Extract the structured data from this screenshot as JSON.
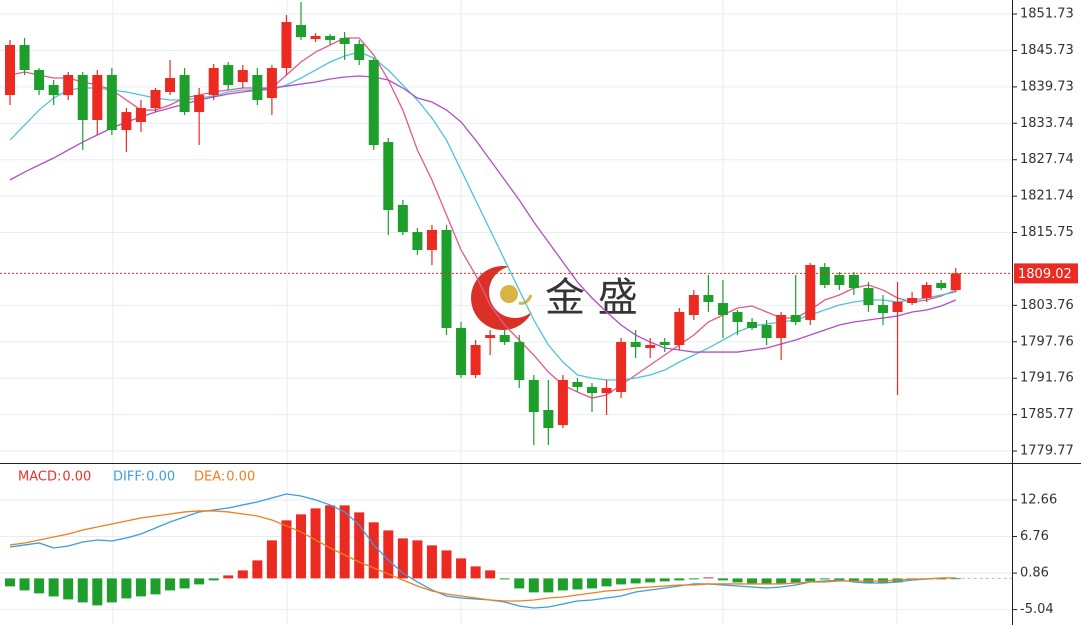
{
  "chart_data": [
    {
      "type": "candlestick",
      "open": [
        1838.39,
        1846.63,
        1842.51,
        1840.04,
        1838.39,
        1841.69,
        1834.28,
        1841.69,
        1832.63,
        1833.95,
        1836.25,
        1838.89,
        1841.69,
        1835.59,
        1838.39,
        1843.33,
        1840.53,
        1841.69,
        1837.9,
        1842.84,
        1849.92,
        1847.61,
        1848.11,
        1847.78,
        1846.79,
        1844.16,
        1830.65,
        1820.28,
        1815.83,
        1812.87,
        1816.17,
        1800.03,
        1792.29,
        1798.38,
        1798.87,
        1797.72,
        1791.47,
        1786.53,
        1784.05,
        1791.14,
        1790.32,
        1789.32,
        1789.49,
        1797.72,
        1796.73,
        1797.72,
        1797.23,
        1802.17,
        1805.46,
        1804.14,
        1802.66,
        1801.02,
        1800.52,
        1798.38,
        1802.17,
        1801.35,
        1810.07,
        1808.76,
        1808.76,
        1806.61,
        1803.81,
        1802.66,
        1804.14,
        1804.97,
        1807.44,
        1806.28
      ],
      "high": [
        1847.45,
        1847.78,
        1842.84,
        1840.86,
        1842.18,
        1842.18,
        1842.51,
        1842.84,
        1836.25,
        1837.57,
        1839.55,
        1844.16,
        1842.84,
        1839.55,
        1843.5,
        1843.83,
        1843.33,
        1842.84,
        1843.33,
        1851.57,
        1853.7,
        1848.6,
        1848.44,
        1848.77,
        1847.45,
        1844.49,
        1831.31,
        1821.1,
        1816.49,
        1816.99,
        1816.99,
        1801.02,
        1798.05,
        1799.7,
        1799.7,
        1798.87,
        1792.29,
        1791.47,
        1792.29,
        1791.8,
        1790.97,
        1791.47,
        1798.38,
        1799.7,
        1798.38,
        1798.38,
        1803.32,
        1806.28,
        1808.76,
        1807.93,
        1802.99,
        1801.68,
        1801.35,
        1802.66,
        1808.76,
        1810.73,
        1810.73,
        1809.25,
        1809.25,
        1807.6,
        1805.46,
        1807.6,
        1805.95,
        1807.6,
        1807.93,
        1809.91
      ],
      "low": [
        1836.75,
        1841.69,
        1838.39,
        1836.75,
        1837.57,
        1829.34,
        1831.81,
        1831.81,
        1829.01,
        1832.3,
        1835.59,
        1838.39,
        1835.1,
        1830.16,
        1837.57,
        1839.22,
        1839.55,
        1836.75,
        1835.1,
        1841.69,
        1847.45,
        1847.12,
        1846.63,
        1844.16,
        1843.33,
        1829.34,
        1815.34,
        1815.34,
        1812.05,
        1810.4,
        1798.87,
        1791.8,
        1791.8,
        1795.58,
        1797.23,
        1790.15,
        1780.76,
        1780.76,
        1783.56,
        1789.49,
        1786.19,
        1785.7,
        1788.5,
        1795.09,
        1795.09,
        1796.07,
        1796.4,
        1801.35,
        1802.66,
        1798.38,
        1798.87,
        1799.7,
        1797.23,
        1794.76,
        1800.52,
        1800.52,
        1806.61,
        1806.28,
        1805.46,
        1802.66,
        1800.52,
        1788.99,
        1803.81,
        1804.31,
        1806.28,
        1805.95
      ],
      "close": [
        1846.63,
        1842.51,
        1839.22,
        1838.39,
        1841.69,
        1834.28,
        1841.69,
        1832.63,
        1835.59,
        1836.25,
        1839.22,
        1841.19,
        1835.59,
        1838.39,
        1842.84,
        1840.04,
        1842.51,
        1837.57,
        1842.84,
        1850.41,
        1847.94,
        1848.11,
        1847.45,
        1846.79,
        1844.16,
        1830.16,
        1819.46,
        1815.83,
        1812.87,
        1816.17,
        1800.03,
        1792.29,
        1797.23,
        1798.87,
        1797.72,
        1791.47,
        1786.19,
        1783.56,
        1791.47,
        1790.32,
        1789.32,
        1790.15,
        1797.72,
        1796.9,
        1797.23,
        1797.23,
        1802.66,
        1805.46,
        1804.31,
        1802.17,
        1801.02,
        1800.03,
        1798.38,
        1802.17,
        1801.02,
        1810.4,
        1807.11,
        1807.11,
        1806.61,
        1803.81,
        1802.5,
        1804.31,
        1804.97,
        1807.11,
        1806.61,
        1809.02
      ],
      "up_color": "#eb2a22",
      "down_color": "#1e9e2a",
      "lines": [
        {
          "color": "#e4598b",
          "values": [
            1841.69,
            1842.18,
            1841.69,
            1841.19,
            1841.19,
            1840.53,
            1840.04,
            1839.22,
            1837.57,
            1835.92,
            1835.92,
            1836.75,
            1837.9,
            1838.39,
            1838.89,
            1839.22,
            1839.55,
            1839.55,
            1839.55,
            1841.69,
            1843.83,
            1845.47,
            1846.63,
            1847.78,
            1847.78,
            1844.98,
            1840.86,
            1835.92,
            1829.34,
            1824.4,
            1818.63,
            1812.87,
            1808.76,
            1803.81,
            1800.52,
            1798.05,
            1795.58,
            1792.78,
            1790.64,
            1789.49,
            1788.5,
            1788.99,
            1790.64,
            1792.29,
            1793.94,
            1795.58,
            1797.23,
            1798.87,
            1801.02,
            1802.17,
            1803.32,
            1803.65,
            1802.66,
            1801.68,
            1801.68,
            1802.99,
            1804.64,
            1805.46,
            1806.61,
            1807.11,
            1806.28,
            1804.97,
            1804.31,
            1804.64,
            1805.3,
            1806.28
          ]
        },
        {
          "color": "#4cc6d6",
          "values": [
            1830.98,
            1833.45,
            1835.92,
            1837.9,
            1839.22,
            1839.55,
            1839.55,
            1839.22,
            1838.89,
            1838.39,
            1837.9,
            1837.57,
            1837.57,
            1837.9,
            1838.23,
            1838.89,
            1839.22,
            1839.22,
            1839.22,
            1840.04,
            1841.19,
            1842.51,
            1843.83,
            1844.81,
            1845.47,
            1844.49,
            1842.51,
            1840.04,
            1837.57,
            1834.6,
            1830.98,
            1826.04,
            1821.1,
            1816.17,
            1811.22,
            1806.28,
            1801.35,
            1797.23,
            1794.43,
            1792.29,
            1791.8,
            1791.47,
            1791.47,
            1791.8,
            1792.29,
            1793.11,
            1794.43,
            1795.58,
            1796.73,
            1798.05,
            1799.37,
            1800.36,
            1800.69,
            1801.02,
            1801.35,
            1802.17,
            1802.99,
            1803.81,
            1804.31,
            1804.64,
            1804.64,
            1804.31,
            1804.64,
            1804.97,
            1805.46,
            1805.95
          ]
        },
        {
          "color": "#b24fc6",
          "values": [
            1824.4,
            1825.71,
            1826.87,
            1828.02,
            1829.34,
            1830.65,
            1831.81,
            1832.96,
            1833.95,
            1834.77,
            1835.59,
            1836.25,
            1836.91,
            1837.57,
            1838.06,
            1838.56,
            1838.89,
            1839.22,
            1839.55,
            1839.87,
            1840.2,
            1840.53,
            1841.03,
            1841.36,
            1841.52,
            1841.36,
            1840.86,
            1839.55,
            1837.9,
            1837.24,
            1835.92,
            1833.95,
            1830.98,
            1827.69,
            1824.4,
            1821.1,
            1817.48,
            1814.19,
            1810.89,
            1807.6,
            1804.97,
            1802.66,
            1800.52,
            1798.87,
            1797.72,
            1796.73,
            1796.4,
            1796.07,
            1796.07,
            1796.07,
            1796.07,
            1796.4,
            1796.73,
            1797.39,
            1798.05,
            1798.87,
            1799.7,
            1800.52,
            1801.02,
            1801.35,
            1801.68,
            1802.0,
            1802.66,
            1802.99,
            1803.65,
            1804.64
          ]
        }
      ],
      "ylim": [
        1777.8,
        1854.04
      ],
      "yticks": [
        1851.73,
        1845.73,
        1839.73,
        1833.74,
        1827.74,
        1821.74,
        1815.75,
        1803.76,
        1797.76,
        1791.76,
        1785.77,
        1779.77
      ],
      "last_price": 1809.02,
      "last_price_color": "#eb2a22",
      "grid": true
    },
    {
      "type": "macd",
      "legend": [
        {
          "name": "MACD:",
          "value": 0,
          "label": "0.00",
          "color": "#e8332a"
        },
        {
          "name": "DIFF:",
          "value": 0,
          "label": "0.00",
          "color": "#3d9de0"
        },
        {
          "name": "DEA:",
          "value": 0,
          "label": "0.00",
          "color": "#f07f1f"
        }
      ],
      "histogram": [
        -1.29,
        -1.94,
        -2.42,
        -2.91,
        -3.39,
        -3.88,
        -4.36,
        -3.88,
        -3.23,
        -2.91,
        -2.58,
        -1.94,
        -1.62,
        -0.97,
        -0.32,
        0.48,
        1.29,
        2.91,
        6.14,
        9.37,
        10.34,
        11.31,
        11.79,
        11.79,
        10.66,
        9.05,
        7.75,
        6.46,
        6.14,
        5.33,
        4.52,
        3.23,
        1.94,
        1.29,
        -0.16,
        -1.62,
        -2.26,
        -2.26,
        -1.94,
        -1.78,
        -1.62,
        -1.29,
        -0.97,
        -0.81,
        -0.65,
        -0.48,
        -0.32,
        -0.16,
        0.16,
        -0.32,
        -0.65,
        -0.81,
        -0.97,
        -0.81,
        -0.65,
        -0.48,
        -0.16,
        -0.32,
        -0.48,
        -0.81,
        -0.81,
        -0.65,
        -0.32,
        -0.16,
        -0.16,
        -0.08
      ],
      "diff": [
        5.07,
        5.4,
        5.72,
        4.91,
        5.23,
        5.88,
        6.2,
        6.04,
        6.53,
        7.17,
        8.14,
        9.11,
        9.92,
        10.73,
        11.05,
        11.37,
        11.86,
        12.34,
        12.99,
        13.63,
        13.31,
        12.67,
        11.86,
        10.73,
        8.63,
        5.4,
        2.97,
        0.87,
        -0.58,
        -1.87,
        -2.84,
        -3.17,
        -3.33,
        -3.49,
        -3.81,
        -4.46,
        -4.78,
        -4.62,
        -4.14,
        -3.65,
        -3.49,
        -3.17,
        -2.84,
        -2.2,
        -1.87,
        -1.55,
        -1.23,
        -0.9,
        -0.9,
        -1.07,
        -1.23,
        -1.39,
        -1.55,
        -1.39,
        -1.07,
        -0.58,
        -0.42,
        -0.26,
        -0.58,
        -0.74,
        -0.74,
        -0.58,
        -0.26,
        -0.1,
        0.06,
        0.06
      ],
      "dea": [
        5.4,
        5.72,
        6.2,
        6.69,
        7.17,
        7.82,
        8.3,
        8.79,
        9.27,
        9.76,
        10.08,
        10.4,
        10.73,
        10.89,
        10.89,
        10.73,
        10.4,
        10.08,
        9.43,
        8.47,
        7.5,
        6.2,
        4.91,
        3.78,
        2.65,
        1.68,
        0.71,
        -0.26,
        -1.23,
        -2.04,
        -2.52,
        -2.84,
        -3.17,
        -3.49,
        -3.65,
        -3.65,
        -3.49,
        -3.17,
        -3.0,
        -2.68,
        -2.36,
        -2.04,
        -1.87,
        -1.55,
        -1.39,
        -1.23,
        -1.07,
        -1.07,
        -0.9,
        -0.9,
        -0.9,
        -0.9,
        -0.9,
        -0.9,
        -0.74,
        -0.58,
        -0.58,
        -0.42,
        -0.42,
        -0.42,
        -0.42,
        -0.26,
        -0.1,
        -0.1,
        0.06,
        0.06
      ],
      "ylim": [
        -6.72,
        18.31
      ],
      "yticks": [
        12.66,
        6.76,
        0.86,
        -5.04
      ],
      "grid": true
    }
  ],
  "watermark": "金 盛"
}
